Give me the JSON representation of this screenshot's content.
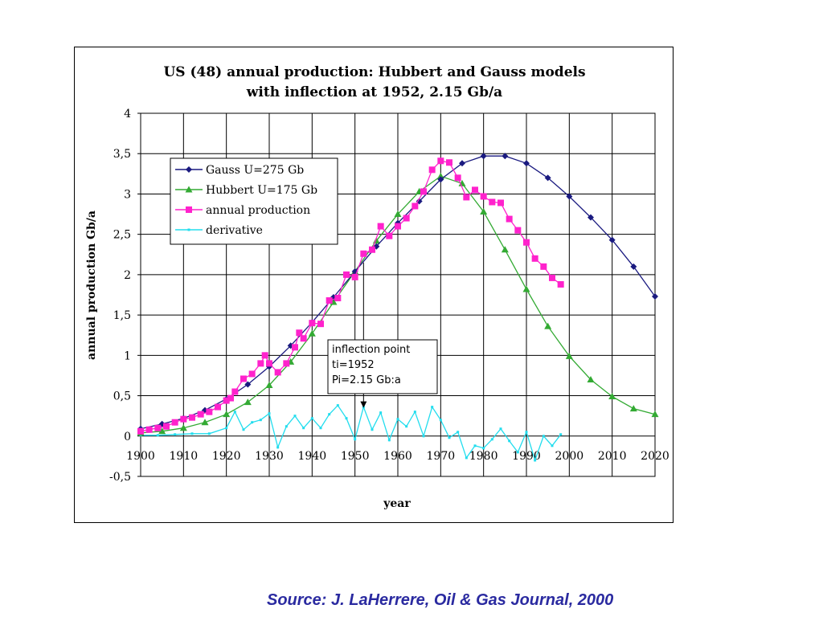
{
  "source_note": "Source: J. LaHerrere, Oil & Gas Journal, 2000",
  "chart_data": {
    "type": "line",
    "title": "US (48) annual production: Hubbert and Gauss models",
    "subtitle": "with inflection at 1952, 2.15 Gb/a",
    "xlabel": "year",
    "ylabel": "annual production Gb/a",
    "xlim": [
      1900,
      2020
    ],
    "ylim": [
      -0.5,
      4
    ],
    "x_ticks": [
      1900,
      1910,
      1920,
      1930,
      1940,
      1950,
      1960,
      1970,
      1980,
      1990,
      2000,
      2010,
      2020
    ],
    "y_ticks": [
      -0.5,
      0,
      0.5,
      1,
      1.5,
      2,
      2.5,
      3,
      3.5,
      4
    ],
    "y_tick_labels": [
      "-0,5",
      "0",
      "0,5",
      "1",
      "1,5",
      "2",
      "2,5",
      "3",
      "3,5",
      "4"
    ],
    "grid": true,
    "legend_position": "top-left",
    "annotation": {
      "lines": [
        "inflection point",
        "ti=1952",
        "Pi=2.15 Gb:a"
      ],
      "points_to": [
        1952,
        0.35
      ]
    },
    "series": [
      {
        "name": "Gauss U=275 Gb",
        "color": "#1a1a80",
        "marker": "diamond",
        "x": [
          1900,
          1905,
          1910,
          1915,
          1920,
          1925,
          1930,
          1935,
          1940,
          1945,
          1950,
          1955,
          1960,
          1965,
          1970,
          1975,
          1980,
          1985,
          1990,
          1995,
          2000,
          2005,
          2010,
          2015,
          2020
        ],
        "y": [
          0.09,
          0.15,
          0.22,
          0.32,
          0.46,
          0.64,
          0.86,
          1.12,
          1.41,
          1.72,
          2.04,
          2.35,
          2.64,
          2.91,
          3.18,
          3.38,
          3.47,
          3.47,
          3.38,
          3.2,
          2.97,
          2.71,
          2.43,
          2.1,
          1.73
        ]
      },
      {
        "name": "Hubbert U=175 Gb",
        "color": "#33aa33",
        "marker": "triangle",
        "x": [
          1900,
          1905,
          1910,
          1915,
          1920,
          1925,
          1930,
          1935,
          1940,
          1945,
          1950,
          1955,
          1960,
          1965,
          1970,
          1975,
          1980,
          1985,
          1990,
          1995,
          2000,
          2005,
          2010,
          2015,
          2020
        ],
        "y": [
          0.04,
          0.06,
          0.1,
          0.17,
          0.27,
          0.42,
          0.63,
          0.92,
          1.27,
          1.66,
          2.04,
          2.42,
          2.75,
          3.03,
          3.22,
          3.13,
          2.78,
          2.31,
          1.82,
          1.36,
          0.99,
          0.7,
          0.49,
          0.34,
          0.27
        ]
      },
      {
        "name": "annual production",
        "color": "#ff22cc",
        "marker": "square",
        "x": [
          1900,
          1902,
          1904,
          1906,
          1908,
          1910,
          1912,
          1914,
          1916,
          1918,
          1920,
          1921,
          1922,
          1924,
          1926,
          1928,
          1929,
          1930,
          1932,
          1934,
          1936,
          1937,
          1938,
          1940,
          1942,
          1944,
          1946,
          1948,
          1950,
          1952,
          1954,
          1956,
          1958,
          1960,
          1962,
          1964,
          1966,
          1968,
          1970,
          1972,
          1974,
          1976,
          1978,
          1980,
          1982,
          1984,
          1986,
          1988,
          1990,
          1992,
          1994,
          1996,
          1998
        ],
        "y": [
          0.06,
          0.08,
          0.1,
          0.12,
          0.17,
          0.21,
          0.23,
          0.27,
          0.3,
          0.36,
          0.44,
          0.47,
          0.55,
          0.71,
          0.77,
          0.9,
          1.0,
          0.9,
          0.79,
          0.9,
          1.1,
          1.28,
          1.21,
          1.4,
          1.39,
          1.68,
          1.71,
          2.0,
          1.97,
          2.26,
          2.31,
          2.6,
          2.48,
          2.6,
          2.7,
          2.85,
          3.03,
          3.3,
          3.41,
          3.39,
          3.2,
          2.96,
          3.05,
          2.97,
          2.9,
          2.89,
          2.69,
          2.55,
          2.4,
          2.2,
          2.1,
          1.96,
          1.88
        ]
      },
      {
        "name": "derivative",
        "color": "#22ddee",
        "marker": "small",
        "x": [
          1900,
          1904,
          1908,
          1912,
          1916,
          1920,
          1922,
          1924,
          1926,
          1928,
          1930,
          1932,
          1934,
          1936,
          1938,
          1940,
          1942,
          1944,
          1946,
          1948,
          1950,
          1952,
          1954,
          1956,
          1958,
          1960,
          1962,
          1964,
          1966,
          1968,
          1970,
          1972,
          1974,
          1976,
          1978,
          1980,
          1982,
          1984,
          1986,
          1988,
          1990,
          1992,
          1994,
          1996,
          1998
        ],
        "y": [
          0.01,
          0.01,
          0.02,
          0.03,
          0.03,
          0.1,
          0.3,
          0.08,
          0.17,
          0.2,
          0.28,
          -0.14,
          0.12,
          0.25,
          0.1,
          0.22,
          0.1,
          0.27,
          0.38,
          0.22,
          -0.04,
          0.36,
          0.08,
          0.29,
          -0.05,
          0.21,
          0.12,
          0.3,
          0.0,
          0.36,
          0.2,
          -0.02,
          0.05,
          -0.27,
          -0.12,
          -0.15,
          -0.04,
          0.09,
          -0.06,
          -0.2,
          0.05,
          -0.3,
          0.0,
          -0.12,
          0.02
        ]
      }
    ]
  }
}
